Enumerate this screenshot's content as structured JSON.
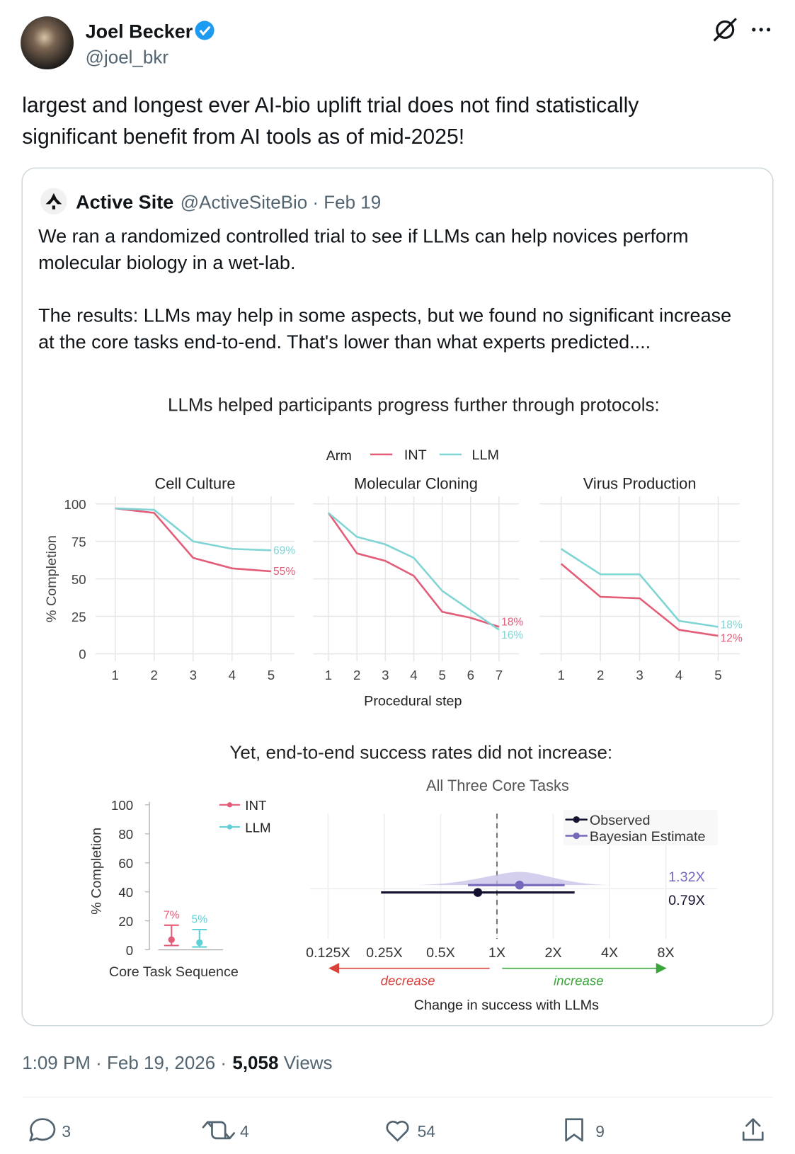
{
  "tweet": {
    "name": "Joel Becker",
    "handle": "@joel_bkr",
    "lines": [
      "largest and longest ever AI-bio uplift trial does not find statistically",
      "significant benefit from AI tools as of mid-2025!"
    ],
    "time": "1:09 PM · Feb 19, 2026 ·",
    "views_count": "5,058",
    "views_label": "Views",
    "replies": "3",
    "reposts": "4",
    "likes": "54",
    "bookmarks": "9"
  },
  "quote": {
    "name": "Active Site",
    "meta": "@ActiveSiteBio · Feb 19",
    "paragraphs": [
      [
        "We ran a randomized controlled trial to see if LLMs can help novices perform",
        "molecular biology in a wet-lab."
      ],
      [
        "The results: LLMs may help in some aspects, but we found no significant increase",
        "at the core tasks end-to-end. That's lower than what experts predicted...."
      ]
    ]
  },
  "chart_data": [
    {
      "type": "line",
      "title": "LLMs helped participants progress further through protocols:",
      "legend_title": "Arm",
      "ylabel": "% Completion",
      "xlabel": "Procedural step",
      "ylim": [
        -5,
        105
      ],
      "yticks": [
        0,
        25,
        50,
        75,
        100
      ],
      "grid": true,
      "panels": [
        {
          "title": "Cell Culture",
          "x": [
            1,
            2,
            3,
            4,
            5
          ],
          "xlim": [
            0.5,
            5.6
          ],
          "series": [
            {
              "name": "INT",
              "color": "#e35d78",
              "values": [
                97,
                94,
                64,
                57,
                55
              ],
              "end_label": "55%"
            },
            {
              "name": "LLM",
              "color": "#80d4d4",
              "values": [
                97,
                96,
                75,
                70,
                69
              ],
              "end_label": "69%"
            }
          ]
        },
        {
          "title": "Molecular Cloning",
          "x": [
            1,
            2,
            3,
            4,
            5,
            6,
            7
          ],
          "xlim": [
            0.45,
            7.7
          ],
          "series": [
            {
              "name": "INT",
              "color": "#e35d78",
              "values": [
                94,
                67,
                62,
                52,
                28,
                24,
                18
              ],
              "end_label": "18%"
            },
            {
              "name": "LLM",
              "color": "#80d4d4",
              "values": [
                94,
                78,
                73,
                64,
                42,
                29,
                16
              ],
              "end_label": "16%"
            }
          ]
        },
        {
          "title": "Virus Production",
          "x": [
            1,
            2,
            3,
            4,
            5
          ],
          "xlim": [
            0.45,
            5.55
          ],
          "series": [
            {
              "name": "INT",
              "color": "#e35d78",
              "values": [
                60,
                38,
                37,
                16,
                12
              ],
              "end_label": "12%"
            },
            {
              "name": "LLM",
              "color": "#80d4d4",
              "values": [
                70,
                53,
                53,
                22,
                18
              ],
              "end_label": "18%"
            }
          ]
        }
      ]
    },
    {
      "type": "errorbar",
      "title": "Yet, end-to-end success rates did not increase:",
      "ylabel": "% Completion",
      "xlabel": "Core Task Sequence",
      "ylim": [
        0,
        100
      ],
      "yticks": [
        0,
        20,
        40,
        60,
        80,
        100
      ],
      "series": [
        {
          "name": "INT",
          "color": "#e35d78",
          "values": [
            7
          ],
          "value_labels": [
            "7%"
          ],
          "lower": [
            3
          ],
          "upper": [
            17
          ]
        },
        {
          "name": "LLM",
          "color": "#5fd0d6",
          "values": [
            5
          ],
          "value_labels": [
            "5%"
          ],
          "lower": [
            2
          ],
          "upper": [
            14
          ]
        }
      ]
    },
    {
      "type": "interval",
      "title": "All Three Core Tasks",
      "xlabel": "Change in success with LLMs",
      "log_x": true,
      "xlim": [
        0.1,
        15
      ],
      "xticks": [
        {
          "value": 0.125,
          "label": "0.125X"
        },
        {
          "value": 0.25,
          "label": "0.25X"
        },
        {
          "value": 0.5,
          "label": "0.5X"
        },
        {
          "value": 1,
          "label": "1X"
        },
        {
          "value": 2,
          "label": "2X"
        },
        {
          "value": 4,
          "label": "4X"
        },
        {
          "value": 8,
          "label": "8X"
        }
      ],
      "refline": 1,
      "direction_labels": [
        "decrease",
        "increase"
      ],
      "series": [
        {
          "name": "Observed",
          "color": "#121230",
          "values": [
            0.79
          ],
          "value_labels": [
            "0.79X"
          ],
          "lower": [
            0.24
          ],
          "upper": [
            2.6
          ]
        },
        {
          "name": "Bayesian Estimate",
          "color": "#7468bd",
          "values": [
            1.32
          ],
          "value_labels": [
            "1.32X"
          ],
          "lower": [
            0.7
          ],
          "upper": [
            2.3
          ]
        }
      ]
    }
  ]
}
